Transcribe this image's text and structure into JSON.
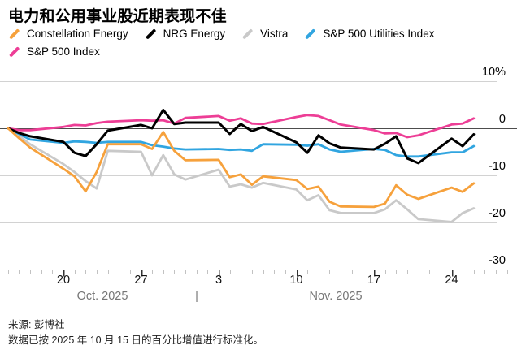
{
  "title": "电力和公用事业股近期表现不佳",
  "footer": {
    "source_line": "来源: 彭博社",
    "note_line": "数据已按 2025 年 10 月 15 日的百分比增值进行标准化。"
  },
  "y_axis": {
    "ticks": [
      {
        "label": "10%",
        "value": 10
      },
      {
        "label": "0",
        "value": 0
      },
      {
        "label": "-10",
        "value": -10
      },
      {
        "label": "-20",
        "value": -20
      },
      {
        "label": "-30",
        "value": -30
      }
    ]
  },
  "x_axis": {
    "tick_labels": [
      {
        "label": "20",
        "date": "2025-10-20"
      },
      {
        "label": "27",
        "date": "2025-10-27"
      },
      {
        "label": "3",
        "date": "2025-11-03"
      },
      {
        "label": "10",
        "date": "2025-11-10"
      },
      {
        "label": "17",
        "date": "2025-11-17"
      },
      {
        "label": "24",
        "date": "2025-11-24"
      }
    ],
    "month_labels": [
      "Oct. 2025",
      "Nov. 2025"
    ],
    "separator": "|"
  },
  "chart_data": {
    "type": "line",
    "title": "电力和公用事业股近期表现不佳",
    "ylabel": "%",
    "ylim": [
      -30,
      10
    ],
    "baseline_value": 0,
    "legend_position": "top",
    "grid": "horizontal",
    "x": [
      "2025-10-15",
      "2025-10-16",
      "2025-10-17",
      "2025-10-20",
      "2025-10-21",
      "2025-10-22",
      "2025-10-23",
      "2025-10-24",
      "2025-10-27",
      "2025-10-28",
      "2025-10-29",
      "2025-10-30",
      "2025-10-31",
      "2025-11-03",
      "2025-11-04",
      "2025-11-05",
      "2025-11-06",
      "2025-11-07",
      "2025-11-10",
      "2025-11-11",
      "2025-11-12",
      "2025-11-13",
      "2025-11-14",
      "2025-11-17",
      "2025-11-18",
      "2025-11-19",
      "2025-11-20",
      "2025-11-21",
      "2025-11-24",
      "2025-11-25",
      "2025-11-26"
    ],
    "series": [
      {
        "name": "Constellation Energy",
        "color": "#F6A13C",
        "values": [
          0,
          -2.1,
          -4.1,
          -8.6,
          -10.2,
          -13.4,
          -9.3,
          -3.4,
          -3.4,
          -4.4,
          -0.8,
          -4.8,
          -6.8,
          -6.7,
          -10.4,
          -9.8,
          -12.0,
          -10.2,
          -11.0,
          -12.9,
          -12.4,
          -15.6,
          -16.6,
          -16.7,
          -16.0,
          -12.1,
          -14.1,
          -15.0,
          -12.6,
          -13.5,
          -11.7
        ]
      },
      {
        "name": "NRG Energy",
        "color": "#000000",
        "values": [
          0,
          -1.0,
          -1.7,
          -2.9,
          -5.2,
          -5.9,
          -3.4,
          -0.5,
          0.7,
          0.0,
          3.9,
          0.9,
          1.2,
          1.2,
          -1.2,
          0.9,
          -0.6,
          0.3,
          -3.0,
          -5.2,
          -1.5,
          -3.2,
          -4.1,
          -4.5,
          -3.3,
          -1.7,
          -6.4,
          -7.4,
          -2.2,
          -3.8,
          -1.3
        ]
      },
      {
        "name": "Vistra",
        "color": "#C9C9C9",
        "values": [
          0,
          -1.6,
          -3.4,
          -7.6,
          -9.3,
          -11.2,
          -12.8,
          -4.8,
          -5.0,
          -10.0,
          -5.7,
          -9.8,
          -10.9,
          -8.8,
          -12.4,
          -11.9,
          -12.6,
          -11.6,
          -13.0,
          -15.3,
          -14.2,
          -17.4,
          -18.0,
          -18.0,
          -17.2,
          -15.3,
          -17.2,
          -19.3,
          -19.9,
          -18.0,
          -17.0
        ]
      },
      {
        "name": "S&P 500 Utilities Index",
        "color": "#31A5E0",
        "values": [
          0,
          -1.2,
          -2.4,
          -3.1,
          -2.8,
          -2.9,
          -3.1,
          -2.9,
          -2.9,
          -3.6,
          -3.9,
          -4.3,
          -4.5,
          -4.4,
          -4.6,
          -4.5,
          -4.8,
          -3.4,
          -3.5,
          -3.7,
          -3.4,
          -4.5,
          -5.0,
          -4.4,
          -4.6,
          -5.7,
          -6.0,
          -6.0,
          -5.1,
          -5.1,
          -3.8
        ]
      },
      {
        "name": "S&P 500 Index",
        "color": "#ED3E96",
        "values": [
          0,
          -0.4,
          -0.4,
          0.3,
          0.7,
          0.6,
          1.1,
          1.4,
          1.7,
          1.6,
          1.7,
          1.0,
          2.2,
          2.6,
          1.6,
          2.1,
          1.0,
          0.9,
          2.4,
          2.8,
          2.6,
          1.7,
          0.8,
          -0.4,
          -1.1,
          -1.0,
          -1.9,
          -1.5,
          0.8,
          1.0,
          2.1
        ]
      }
    ]
  }
}
